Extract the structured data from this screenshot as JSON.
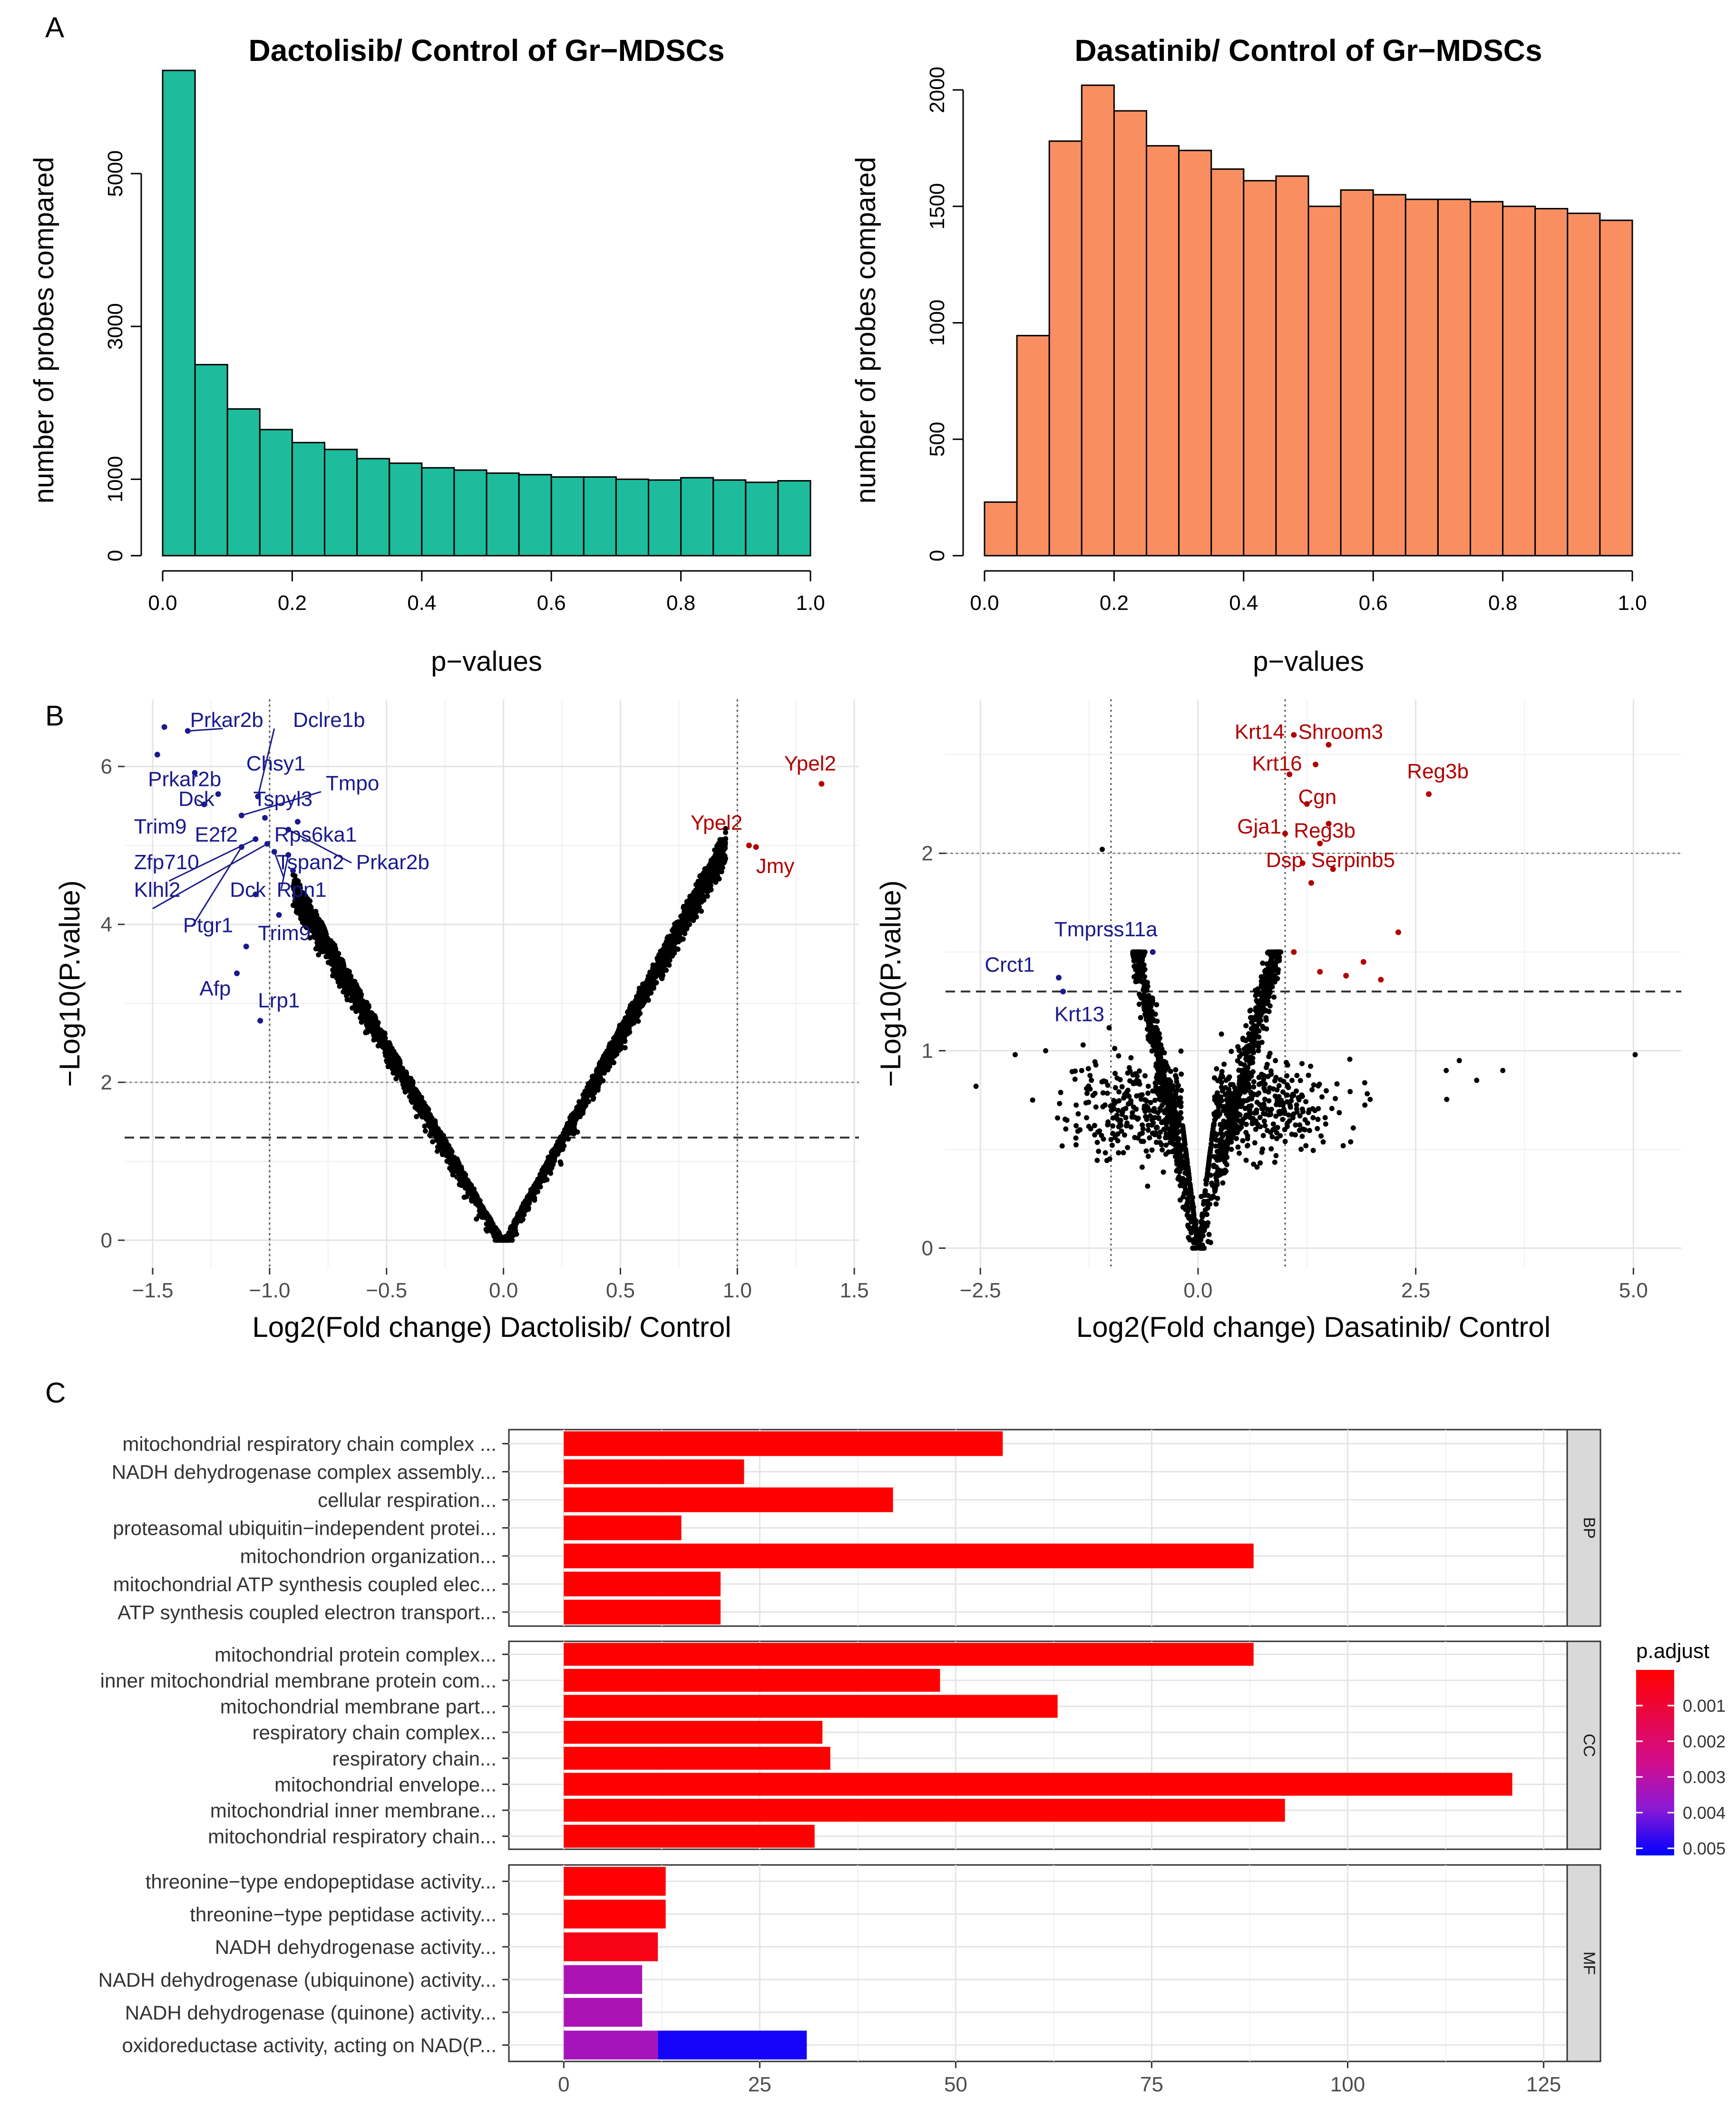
{
  "panel_labels": {
    "a": "A",
    "b": "B",
    "c": "C"
  },
  "chart_data": [
    {
      "id": "hist-dactolisib",
      "type": "bar",
      "title": "Dactolisib/ Control of Gr−MDSCs",
      "xlabel": "p−values",
      "ylabel": "number of probes compared",
      "xlim": [
        0,
        1
      ],
      "ylim": [
        0,
        6400
      ],
      "xticks": [
        0.0,
        0.2,
        0.4,
        0.6,
        0.8,
        1.0
      ],
      "xtick_labels": [
        "0.0",
        "0.2",
        "0.4",
        "0.6",
        "0.8",
        "1.0"
      ],
      "yticks": [
        0,
        1000,
        3000,
        5000
      ],
      "ytick_labels": [
        "0",
        "1000",
        "3000",
        "5000"
      ],
      "bin_width": 0.05,
      "bin_starts": [
        0.0,
        0.05,
        0.1,
        0.15,
        0.2,
        0.25,
        0.3,
        0.35,
        0.4,
        0.45,
        0.5,
        0.55,
        0.6,
        0.65,
        0.7,
        0.75,
        0.8,
        0.85,
        0.9,
        0.95
      ],
      "values": [
        6350,
        2500,
        1920,
        1650,
        1480,
        1390,
        1270,
        1210,
        1150,
        1120,
        1080,
        1060,
        1030,
        1030,
        1000,
        990,
        1020,
        990,
        960,
        980
      ],
      "color": "#1DBC9C"
    },
    {
      "id": "hist-dasatinib",
      "type": "bar",
      "title": "Dasatinib/ Control of Gr−MDSCs",
      "xlabel": "p−values",
      "ylabel": "number of probes compared",
      "xlim": [
        0,
        1
      ],
      "ylim": [
        0,
        2100
      ],
      "xticks": [
        0.0,
        0.2,
        0.4,
        0.6,
        0.8,
        1.0
      ],
      "xtick_labels": [
        "0.0",
        "0.2",
        "0.4",
        "0.6",
        "0.8",
        "1.0"
      ],
      "yticks": [
        0,
        500,
        1000,
        1500,
        2000
      ],
      "ytick_labels": [
        "0",
        "500",
        "1000",
        "1500",
        "2000"
      ],
      "bin_width": 0.05,
      "bin_starts": [
        0.0,
        0.05,
        0.1,
        0.15,
        0.2,
        0.25,
        0.3,
        0.35,
        0.4,
        0.45,
        0.5,
        0.55,
        0.6,
        0.65,
        0.7,
        0.75,
        0.8,
        0.85,
        0.9,
        0.95
      ],
      "values": [
        230,
        945,
        1780,
        2020,
        1910,
        1760,
        1740,
        1660,
        1610,
        1630,
        1500,
        1570,
        1550,
        1530,
        1530,
        1520,
        1500,
        1490,
        1470,
        1440
      ],
      "color": "#F98F61"
    },
    {
      "id": "volcano-dactolisib",
      "type": "scatter",
      "xlabel": "Log2(Fold change) Dactolisib/ Control",
      "ylabel": "−Log10(P.value)",
      "xlim": [
        -1.62,
        1.52
      ],
      "ylim": [
        -0.35,
        6.85
      ],
      "xticks": [
        -1.5,
        -1.0,
        -0.5,
        0.0,
        0.5,
        1.0,
        1.5
      ],
      "xtick_labels": [
        "−1.5",
        "−1.0",
        "−0.5",
        "0.0",
        "0.5",
        "1.0",
        "1.5"
      ],
      "yticks": [
        0,
        2,
        4,
        6
      ],
      "ytick_labels": [
        "0",
        "2",
        "4",
        "6"
      ],
      "vlines": [
        -1.0,
        1.0
      ],
      "hline_dotted": 2.0,
      "hline_dashed": 1.3,
      "v_curve": {
        "k_left": 5.2,
        "k_right": 5.5,
        "x_left_max": -0.9,
        "x_right_max": 0.95
      },
      "points_down": [
        [
          -1.45,
          6.5
        ],
        [
          -1.35,
          6.45
        ],
        [
          -1.48,
          6.15
        ],
        [
          -1.32,
          5.92
        ],
        [
          -1.22,
          5.65
        ],
        [
          -1.28,
          5.52
        ],
        [
          -1.05,
          5.62
        ],
        [
          -1.12,
          5.38
        ],
        [
          -1.02,
          5.35
        ],
        [
          -0.88,
          5.3
        ],
        [
          -0.92,
          5.2
        ],
        [
          -1.06,
          5.08
        ],
        [
          -1.01,
          5.02
        ],
        [
          -1.12,
          4.98
        ],
        [
          -0.98,
          4.92
        ],
        [
          -0.92,
          4.88
        ],
        [
          -0.9,
          4.68
        ],
        [
          -1.06,
          4.38
        ],
        [
          -0.96,
          4.12
        ],
        [
          -1.1,
          3.72
        ],
        [
          -1.14,
          3.38
        ],
        [
          -1.04,
          2.78
        ]
      ],
      "points_up": [
        [
          1.36,
          5.78
        ],
        [
          1.05,
          5.0
        ],
        [
          1.08,
          4.98
        ]
      ],
      "labels_down": [
        {
          "text": "Prkar2b",
          "x": -1.34,
          "y": 6.5
        },
        {
          "text": "Dclre1b",
          "x": -0.9,
          "y": 6.5
        },
        {
          "text": "Chsy1",
          "x": -1.1,
          "y": 5.95
        },
        {
          "text": "Tmpo",
          "x": -0.76,
          "y": 5.7
        },
        {
          "text": "Prkar2b",
          "x": -1.52,
          "y": 5.75
        },
        {
          "text": "Dck",
          "x": -1.39,
          "y": 5.5
        },
        {
          "text": "Tspyl3",
          "x": -1.07,
          "y": 5.5
        },
        {
          "text": "Trim9",
          "x": -1.58,
          "y": 5.15
        },
        {
          "text": "E2f2",
          "x": -1.32,
          "y": 5.05
        },
        {
          "text": "Rps6ka1",
          "x": -0.98,
          "y": 5.05
        },
        {
          "text": "Zfp710",
          "x": -1.58,
          "y": 4.7
        },
        {
          "text": "Tspan2",
          "x": -0.97,
          "y": 4.7
        },
        {
          "text": "Prkar2b",
          "x": -0.63,
          "y": 4.7
        },
        {
          "text": "Klhl2",
          "x": -1.58,
          "y": 4.35
        },
        {
          "text": "Dck",
          "x": -1.17,
          "y": 4.35
        },
        {
          "text": "Rpn1",
          "x": -0.97,
          "y": 4.35
        },
        {
          "text": "Ptgr1",
          "x": -1.37,
          "y": 3.9
        },
        {
          "text": "Trim9",
          "x": -1.05,
          "y": 3.8
        },
        {
          "text": "Afp",
          "x": -1.3,
          "y": 3.1
        },
        {
          "text": "Lrp1",
          "x": -1.05,
          "y": 2.95
        }
      ],
      "labels_up": [
        {
          "text": "Ypel2",
          "x": 1.2,
          "y": 5.95
        },
        {
          "text": "Ypel2",
          "x": 0.8,
          "y": 5.2
        },
        {
          "text": "Jmy",
          "x": 1.08,
          "y": 4.65
        }
      ],
      "up_color": "#B00000",
      "down_color": "#1A1A8C"
    },
    {
      "id": "volcano-dasatinib",
      "type": "scatter",
      "xlabel": "Log2(Fold change) Dasatinib/ Control",
      "ylabel": "−Log10(P.value)",
      "xlim": [
        -2.9,
        5.55
      ],
      "ylim": [
        -0.1,
        2.78
      ],
      "xticks": [
        -2.5,
        0.0,
        2.5,
        5.0
      ],
      "xtick_labels": [
        "−2.5",
        "0.0",
        "2.5",
        "5.0"
      ],
      "yticks": [
        0,
        1,
        2
      ],
      "ytick_labels": [
        "0",
        "1",
        "2"
      ],
      "vlines": [
        -1.0,
        1.0
      ],
      "hline_dotted": 2.0,
      "hline_dashed": 1.3,
      "points_up": [
        [
          1.1,
          2.6
        ],
        [
          1.5,
          2.55
        ],
        [
          1.35,
          2.45
        ],
        [
          1.05,
          2.4
        ],
        [
          2.65,
          2.3
        ],
        [
          1.25,
          2.25
        ],
        [
          1.5,
          2.15
        ],
        [
          1.0,
          2.1
        ],
        [
          1.4,
          2.05
        ],
        [
          1.2,
          1.95
        ],
        [
          1.55,
          1.92
        ],
        [
          1.3,
          1.85
        ],
        [
          2.3,
          1.6
        ],
        [
          1.1,
          1.5
        ],
        [
          1.9,
          1.45
        ],
        [
          1.4,
          1.4
        ],
        [
          1.7,
          1.38
        ],
        [
          2.1,
          1.36
        ]
      ],
      "points_down": [
        [
          -0.52,
          1.5
        ],
        [
          -1.6,
          1.37
        ],
        [
          -1.55,
          1.3
        ]
      ],
      "labels_up": [
        {
          "text": "Krt14",
          "x": 0.42,
          "y": 2.58
        },
        {
          "text": "Shroom3",
          "x": 1.15,
          "y": 2.58
        },
        {
          "text": "Krt16",
          "x": 0.62,
          "y": 2.42
        },
        {
          "text": "Reg3b",
          "x": 2.4,
          "y": 2.38
        },
        {
          "text": "Cgn",
          "x": 1.15,
          "y": 2.25
        },
        {
          "text": "Gja1",
          "x": 0.45,
          "y": 2.1
        },
        {
          "text": "Reg3b",
          "x": 1.1,
          "y": 2.08
        },
        {
          "text": "Dsp",
          "x": 0.78,
          "y": 1.93
        },
        {
          "text": "Serpinb5",
          "x": 1.3,
          "y": 1.93
        }
      ],
      "labels_down": [
        {
          "text": "Tmprss11a",
          "x": -1.65,
          "y": 1.58
        },
        {
          "text": "Crct1",
          "x": -2.45,
          "y": 1.4
        },
        {
          "text": "Krt13",
          "x": -1.65,
          "y": 1.15
        }
      ],
      "up_color": "#B00000",
      "down_color": "#1A1A8C"
    },
    {
      "id": "go-enrichment",
      "type": "bar",
      "orientation": "horizontal",
      "xlim": [
        -7,
        128
      ],
      "xticks": [
        0,
        25,
        50,
        75,
        100,
        125
      ],
      "xtick_labels": [
        "0",
        "25",
        "50",
        "75",
        "100",
        "125"
      ],
      "facets": [
        {
          "name": "BP",
          "terms": [
            {
              "label": "mitochondrial respiratory chain complex ...",
              "value": 56,
              "p": 0.0
            },
            {
              "label": "NADH dehydrogenase complex assembly...",
              "value": 23,
              "p": 0.0
            },
            {
              "label": "cellular respiration...",
              "value": 42,
              "p": 0.0
            },
            {
              "label": "proteasomal ubiquitin−independent protei...",
              "value": 15,
              "p": 0.0
            },
            {
              "label": "mitochondrion organization...",
              "value": 88,
              "p": 0.0
            },
            {
              "label": "mitochondrial ATP synthesis coupled elec...",
              "value": 20,
              "p": 0.0
            },
            {
              "label": "ATP synthesis coupled electron transport...",
              "value": 20,
              "p": 0.0
            }
          ]
        },
        {
          "name": "CC",
          "terms": [
            {
              "label": "mitochondrial protein complex...",
              "value": 88,
              "p": 0.0
            },
            {
              "label": "inner mitochondrial membrane protein com...",
              "value": 48,
              "p": 0.0
            },
            {
              "label": "mitochondrial membrane part...",
              "value": 63,
              "p": 0.0
            },
            {
              "label": "respiratory chain complex...",
              "value": 33,
              "p": 0.0
            },
            {
              "label": "respiratory chain...",
              "value": 34,
              "p": 0.0
            },
            {
              "label": "mitochondrial envelope...",
              "value": 121,
              "p": 0.0
            },
            {
              "label": "mitochondrial inner membrane...",
              "value": 92,
              "p": 0.0
            },
            {
              "label": "mitochondrial respiratory chain...",
              "value": 32,
              "p": 0.0
            }
          ]
        },
        {
          "name": "MF",
          "terms": [
            {
              "label": "threonine−type endopeptidase activity...",
              "value": 13,
              "p": 0.0001
            },
            {
              "label": "threonine−type peptidase activity...",
              "value": 13,
              "p": 0.0001
            },
            {
              "label": "NADH dehydrogenase activity...",
              "value": 12,
              "p": 0.0004
            },
            {
              "label": "NADH dehydrogenase (ubiquinone) activity...",
              "value": 10,
              "p": 0.0033
            },
            {
              "label": "NADH dehydrogenase (quinone) activity...",
              "value": 10,
              "p": 0.0033
            },
            {
              "label": "oxidoreductase activity, acting on NAD(P...",
              "segments": [
                {
                  "value": 12,
                  "p": 0.0034
                },
                {
                  "value": 19,
                  "p": 0.005
                }
              ]
            }
          ]
        }
      ],
      "legend": {
        "title": "p.adjust",
        "ticks": [
          0.001,
          0.002,
          0.003,
          0.004,
          0.005
        ],
        "tick_labels": [
          "0.001",
          "0.002",
          "0.003",
          "0.004",
          "0.005"
        ],
        "min": 0.0,
        "max": 0.0052,
        "position": "right"
      }
    }
  ]
}
